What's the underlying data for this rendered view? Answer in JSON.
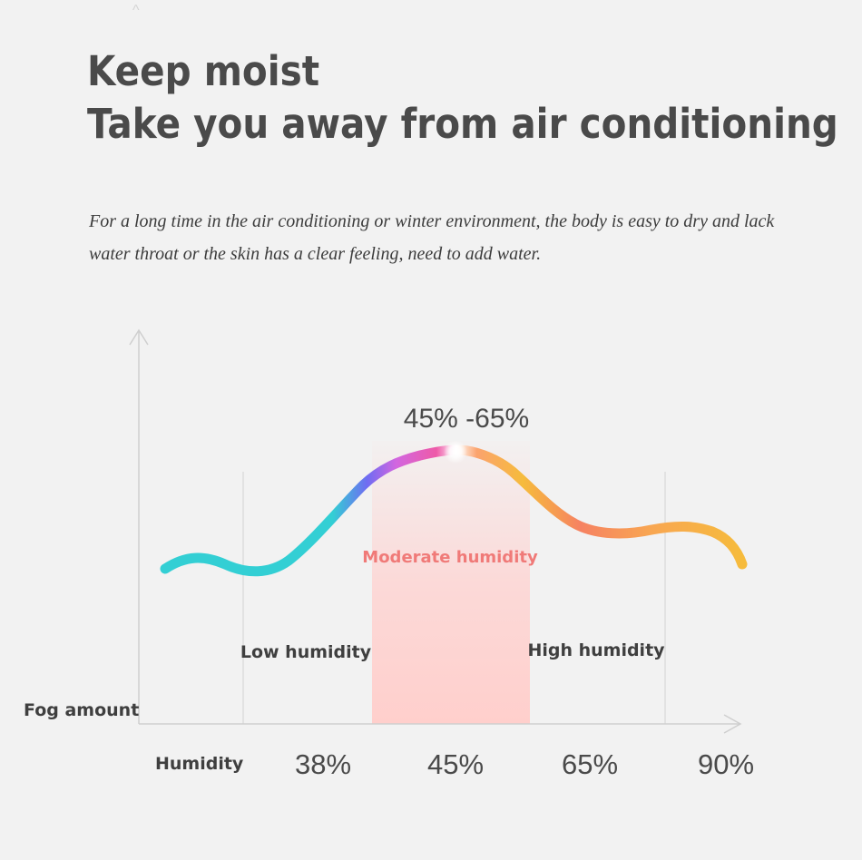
{
  "header": {
    "title_line1": "Keep moist",
    "title_line2": "Take you away from air conditioning",
    "description": "For a long time in the air conditioning or winter environment, the body is easy to dry and lack water throat or the skin has a clear feeling, need to add water."
  },
  "chart_data": {
    "type": "line",
    "title": "",
    "xlabel": "Humidity",
    "ylabel": "Fog amount",
    "x_ticks": [
      "38%",
      "45%",
      "65%",
      "90%"
    ],
    "peak_label": "45% -65%",
    "zones": [
      {
        "name": "Low humidity",
        "from": "38%",
        "to": "45%"
      },
      {
        "name": "Moderate humidity",
        "from": "45%",
        "to": "65%",
        "color": "#f07a78"
      },
      {
        "name": "High humidity",
        "from": "65%",
        "to": "90%"
      }
    ],
    "colors": {
      "low": "#33cfd4",
      "moderate": "#ea5fb0",
      "transition": "#6f6cf2",
      "high": "#f6bb3c",
      "highlight_band": "#ffd1cf",
      "text": "#4a4a4a"
    },
    "grid": false
  }
}
